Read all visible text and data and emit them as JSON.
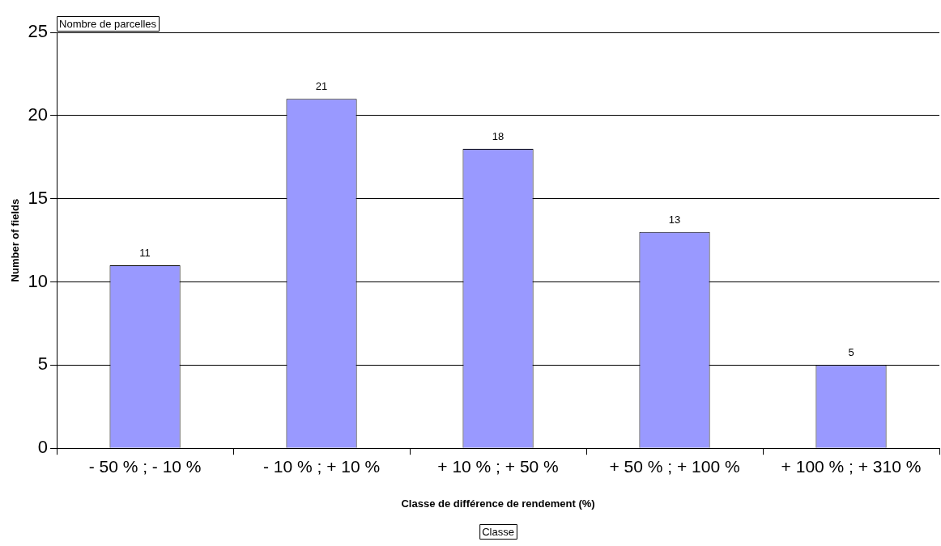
{
  "chart_data": {
    "type": "bar",
    "xlabel": "Classe de différence de rendement (%)",
    "ylabel": "Number of fields",
    "annotations": [
      "Nombre de parcelles",
      "Classe"
    ],
    "categories": [
      "- 50 % ; - 10 %",
      "- 10 % ; + 10 %",
      "+ 10 % ; + 50 %",
      "+ 50 % ; + 100 %",
      "+ 100 % ; + 310 %"
    ],
    "values": [
      11,
      21,
      18,
      13,
      5
    ],
    "color": "#9999ff",
    "ylim": [
      0,
      25
    ],
    "yticks": [
      0,
      5,
      10,
      15,
      20,
      25
    ],
    "grid": "y",
    "data_labels": true,
    "legend": false
  }
}
